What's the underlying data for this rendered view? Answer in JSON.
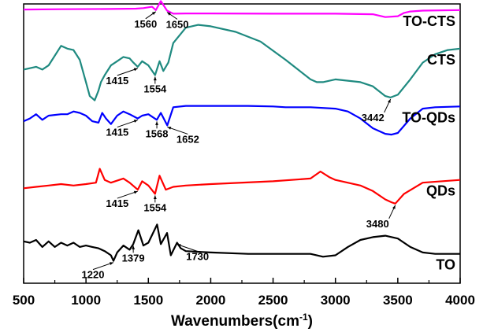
{
  "chart_data": {
    "type": "line",
    "title": "",
    "xlabel": "Wavenumbers(cm",
    "xlabel_sup": "-1",
    "xlabel_close": ")",
    "ylabel": "",
    "xlim": [
      500,
      4000
    ],
    "ylim": [
      0,
      100
    ],
    "xticks": [
      500,
      1000,
      1500,
      2000,
      2500,
      3000,
      3500,
      4000
    ],
    "grid": false,
    "series": [
      {
        "name": "TO-CTS",
        "color": "#ff00ff",
        "x": [
          500,
          800,
          1200,
          1400,
          1460,
          1530,
          1560,
          1600,
          1650,
          1700,
          1800,
          2000,
          2500,
          3000,
          3300,
          3400,
          3500,
          3550,
          3600,
          3700,
          4000
        ],
        "y": [
          98.0,
          98.1,
          98.2,
          98.3,
          98.5,
          99.0,
          97.8,
          101.0,
          97.6,
          96.5,
          96.6,
          96.6,
          96.5,
          96.5,
          96.3,
          95.3,
          95.6,
          96.8,
          97.3,
          97.6,
          97.8
        ],
        "peaks": [
          {
            "label": "1560",
            "x": 1560
          },
          {
            "label": "1650",
            "x": 1650
          }
        ]
      },
      {
        "name": "CTS",
        "color": "#1f8a80",
        "x": [
          500,
          600,
          650,
          700,
          800,
          850,
          900,
          950,
          1000,
          1030,
          1070,
          1100,
          1120,
          1150,
          1200,
          1250,
          1300,
          1350,
          1380,
          1415,
          1450,
          1500,
          1554,
          1590,
          1620,
          1660,
          1700,
          1800,
          1900,
          2000,
          2200,
          2400,
          2600,
          2700,
          2800,
          2850,
          2900,
          3000,
          3100,
          3200,
          3300,
          3400,
          3442,
          3500,
          3600,
          3700,
          3800,
          3900,
          4000
        ],
        "y": [
          76.5,
          77.5,
          76.5,
          78.0,
          85.0,
          84.0,
          83.5,
          80.0,
          72.0,
          67.0,
          65.5,
          69.0,
          72.0,
          74.5,
          78.0,
          79.5,
          81.0,
          80.5,
          79.0,
          77.5,
          79.5,
          78.0,
          74.5,
          79.5,
          76.0,
          79.0,
          86.0,
          91.5,
          92.5,
          92.0,
          90.0,
          86.5,
          80.0,
          76.5,
          73.0,
          72.0,
          72.0,
          73.0,
          72.5,
          72.0,
          70.5,
          67.0,
          66.5,
          67.5,
          73.0,
          79.0,
          82.0,
          83.5,
          84.0
        ],
        "peaks": [
          {
            "label": "1415",
            "x": 1415
          },
          {
            "label": "1554",
            "x": 1554
          },
          {
            "label": "3442",
            "x": 3442
          }
        ]
      },
      {
        "name": "TO-QDs",
        "color": "#0000ff",
        "x": [
          500,
          550,
          600,
          650,
          700,
          800,
          850,
          900,
          950,
          1000,
          1050,
          1100,
          1130,
          1160,
          1200,
          1250,
          1300,
          1350,
          1415,
          1450,
          1500,
          1568,
          1600,
          1652,
          1700,
          1800,
          2000,
          2300,
          2500,
          2600,
          2800,
          3000,
          3100,
          3200,
          3300,
          3400,
          3450,
          3500,
          3600,
          3700,
          3800,
          4000
        ],
        "y": [
          58.0,
          59.0,
          60.5,
          58.5,
          60.0,
          60.5,
          60.5,
          61.5,
          61.0,
          60.0,
          58.0,
          57.5,
          61.0,
          59.0,
          57.0,
          60.0,
          61.5,
          60.5,
          59.0,
          60.0,
          60.5,
          58.5,
          61.0,
          56.5,
          63.0,
          63.5,
          63.5,
          63.5,
          63.3,
          63.0,
          63.0,
          62.5,
          61.5,
          59.0,
          55.5,
          53.5,
          53.2,
          53.8,
          59.0,
          62.5,
          63.0,
          63.3
        ],
        "peaks": [
          {
            "label": "1415",
            "x": 1415
          },
          {
            "label": "1568",
            "x": 1568
          },
          {
            "label": "1652",
            "x": 1652
          }
        ]
      },
      {
        "name": "QDs",
        "color": "#ff0000",
        "x": [
          500,
          600,
          700,
          800,
          900,
          1000,
          1080,
          1110,
          1150,
          1200,
          1300,
          1350,
          1415,
          1450,
          1500,
          1554,
          1590,
          1640,
          1700,
          1800,
          2000,
          2500,
          2800,
          2880,
          2950,
          3000,
          3200,
          3300,
          3400,
          3450,
          3480,
          3550,
          3700,
          4000
        ],
        "y": [
          34.0,
          34.5,
          35.0,
          35.5,
          35.0,
          35.5,
          36.0,
          41.0,
          37.0,
          36.0,
          37.5,
          36.0,
          33.5,
          36.5,
          35.0,
          32.0,
          38.5,
          33.5,
          34.5,
          35.0,
          35.5,
          36.5,
          37.5,
          40.0,
          38.0,
          37.0,
          35.0,
          33.0,
          30.0,
          29.0,
          28.5,
          32.0,
          36.0,
          37.0
        ],
        "peaks": [
          {
            "label": "1415",
            "x": 1415
          },
          {
            "label": "1554",
            "x": 1554
          },
          {
            "label": "3480",
            "x": 3480
          }
        ]
      },
      {
        "name": "TO",
        "color": "#000000",
        "x": [
          500,
          550,
          600,
          650,
          700,
          750,
          800,
          850,
          900,
          950,
          1000,
          1050,
          1100,
          1150,
          1200,
          1220,
          1250,
          1300,
          1350,
          1379,
          1420,
          1460,
          1500,
          1570,
          1600,
          1650,
          1680,
          1730,
          1760,
          1800,
          2000,
          2300,
          2500,
          2800,
          2900,
          3000,
          3100,
          3200,
          3300,
          3400,
          3500,
          3600,
          3700,
          3800,
          4000
        ],
        "y": [
          15.0,
          14.5,
          15.5,
          13.0,
          15.0,
          13.0,
          14.5,
          13.5,
          14.5,
          13.0,
          13.5,
          13.0,
          12.5,
          11.5,
          10.0,
          8.0,
          11.0,
          13.5,
          12.0,
          14.0,
          19.0,
          13.5,
          14.5,
          21.0,
          14.0,
          18.0,
          10.0,
          14.5,
          12.5,
          11.5,
          11.0,
          10.5,
          10.5,
          10.5,
          9.5,
          10.0,
          13.0,
          15.5,
          16.5,
          17.0,
          16.0,
          13.0,
          11.0,
          10.5,
          10.5
        ],
        "peaks": [
          {
            "label": "1220",
            "x": 1220
          },
          {
            "label": "1379",
            "x": 1379
          },
          {
            "label": "1730",
            "x": 1730
          }
        ]
      }
    ]
  }
}
